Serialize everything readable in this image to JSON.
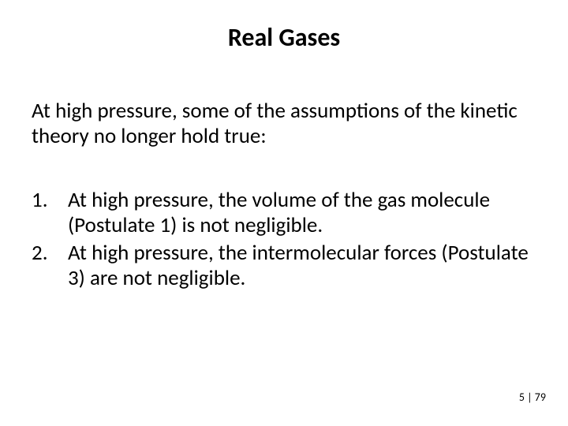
{
  "title": "Real Gases",
  "intro": "At high pressure, some of the assumptions of the kinetic theory no longer hold true:",
  "points": [
    "At high pressure, the volume of the gas molecule (Postulate 1) is not negligible.",
    "At high pressure, the intermolecular forces (Postulate 3) are not negligible."
  ],
  "footer": "5 | 79",
  "colors": {
    "background": "#ffffff",
    "text": "#000000"
  },
  "fontsize": {
    "title": 32,
    "body": 27,
    "footer": 14
  }
}
